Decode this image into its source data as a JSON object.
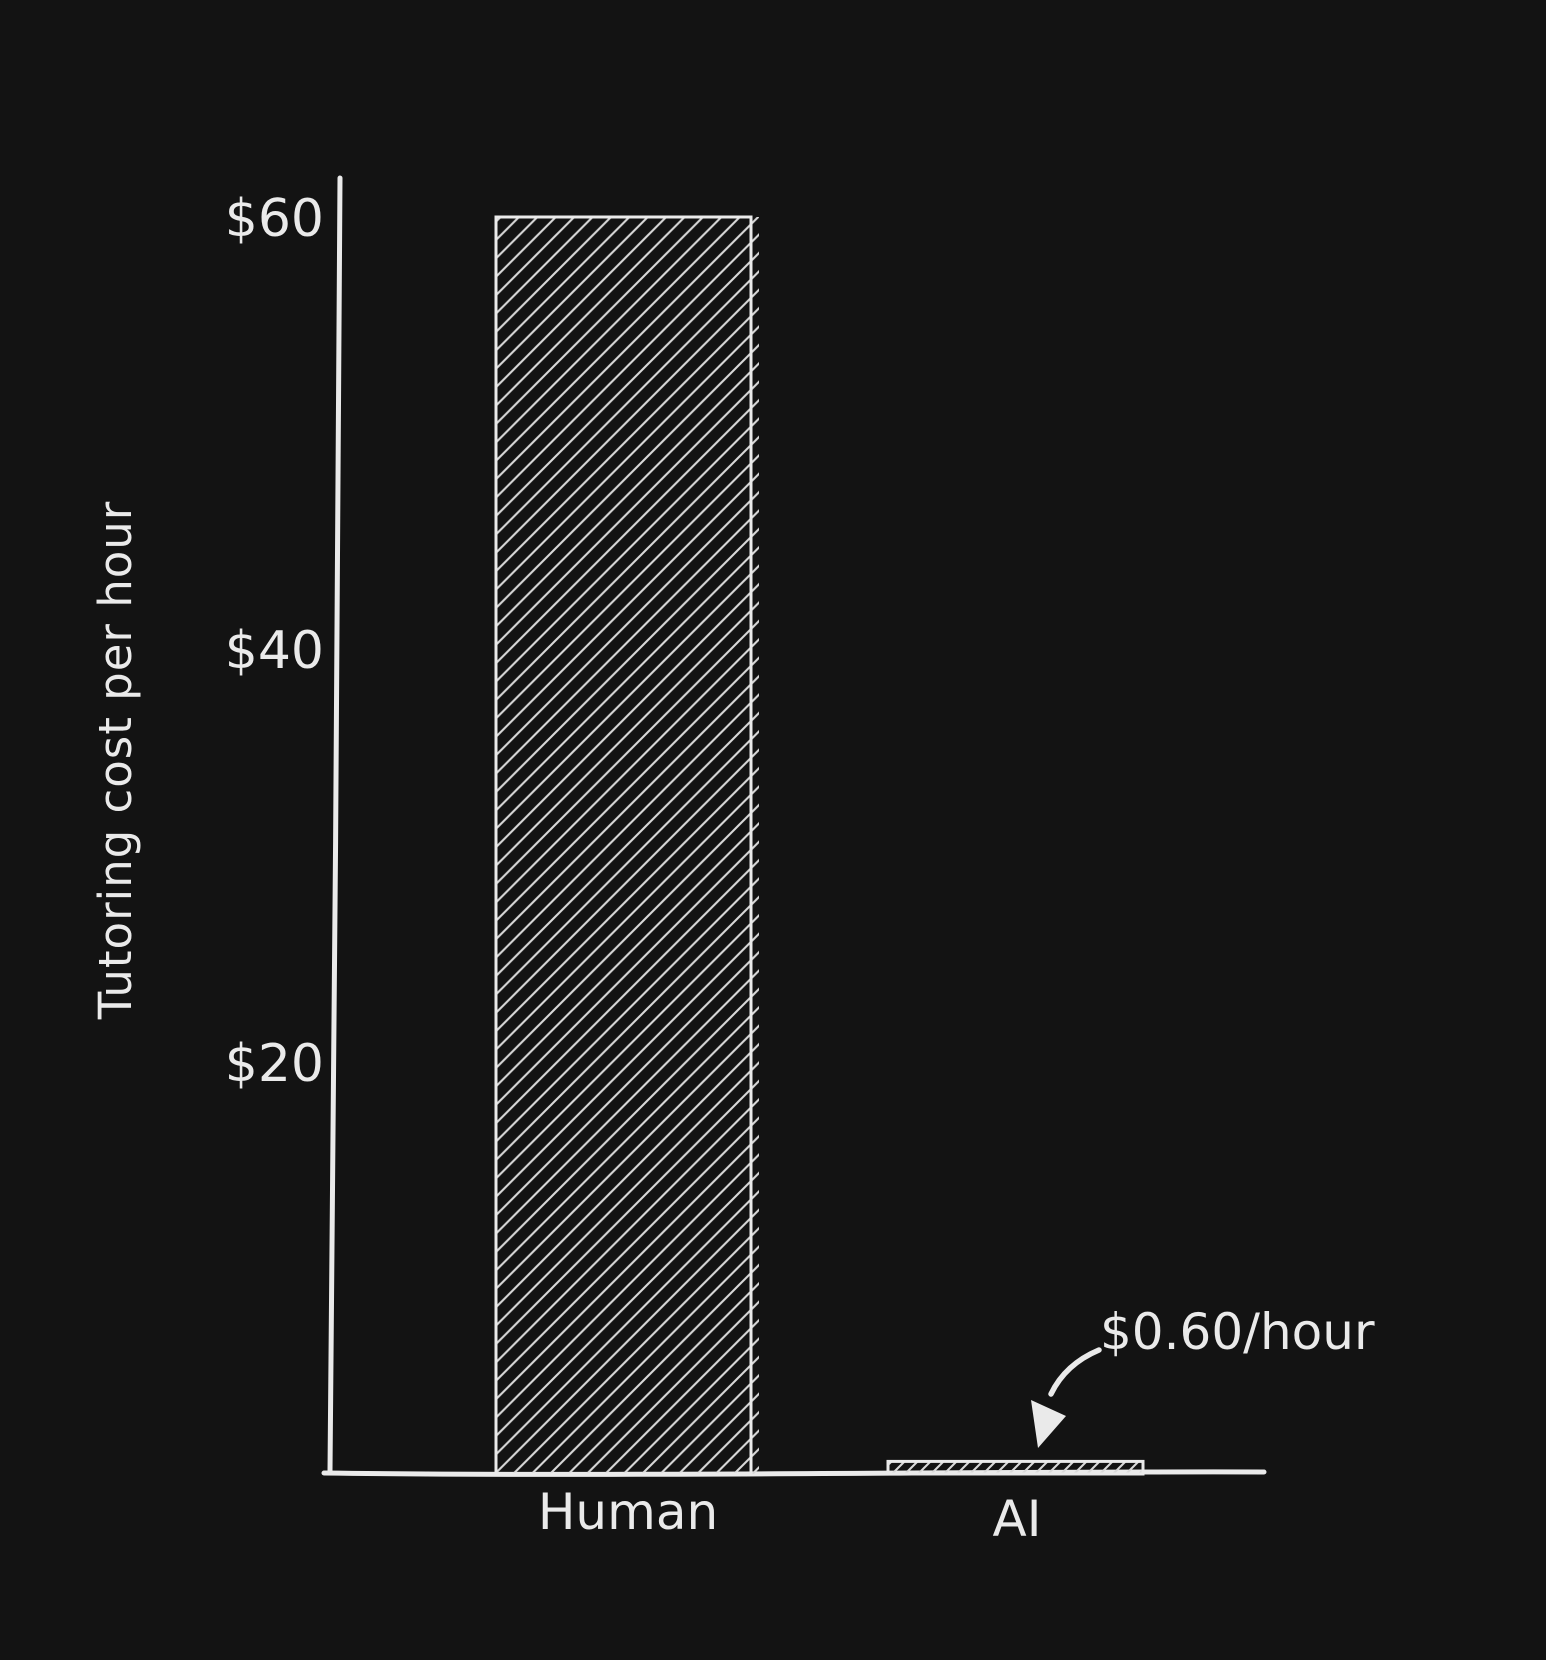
{
  "chart_data": {
    "type": "bar",
    "categories": [
      "Human",
      "AI"
    ],
    "values": [
      60,
      0.6
    ],
    "title": "",
    "xlabel": "",
    "ylabel": "Tutoring cost per hour",
    "ylim": [
      0,
      62
    ],
    "yticks": [
      {
        "label": "$60",
        "value": 60
      },
      {
        "label": "$40",
        "value": 40
      },
      {
        "label": "$20",
        "value": 20
      }
    ],
    "grid": false,
    "legend": false,
    "annotation": {
      "text": "$0.60/hour",
      "target": "AI"
    },
    "style": "hand-drawn sketch, white hatched bars on black background"
  },
  "colors": {
    "background": "#131313",
    "ink": "#eaeaea",
    "hatch": "#d9d9d9"
  }
}
